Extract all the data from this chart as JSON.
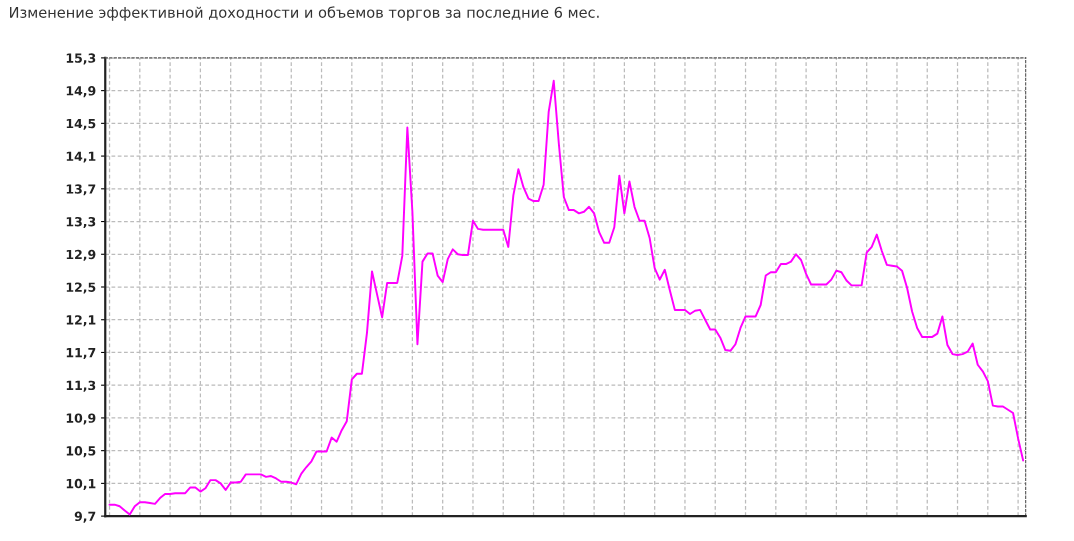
{
  "chart_data": {
    "type": "line",
    "title": "Изменение эффективной доходности и объемов торгов за последние 6 мес.",
    "categories": [
      null,
      null,
      null,
      null,
      null,
      null,
      null,
      null,
      null,
      null,
      null,
      null,
      null,
      null,
      null,
      null,
      null,
      null,
      null,
      null,
      null,
      null,
      null,
      null,
      null,
      null,
      null,
      null,
      null,
      null,
      null,
      null,
      null,
      null,
      null,
      null,
      null,
      null,
      null,
      null,
      null,
      null,
      null,
      null,
      null,
      null,
      null,
      null,
      null,
      null,
      null,
      null,
      null,
      null,
      null,
      null,
      null,
      null,
      null,
      null,
      null,
      null,
      null,
      null,
      null,
      null,
      null,
      null,
      null,
      null,
      null,
      null,
      null,
      null,
      null,
      null,
      null,
      null,
      null,
      null,
      null,
      null,
      null,
      null,
      null,
      null,
      null,
      null,
      null,
      null,
      null,
      null,
      null,
      null,
      null,
      null,
      null,
      null,
      null,
      null,
      null,
      null,
      null,
      null,
      null,
      null,
      null,
      null,
      null,
      null,
      null,
      null,
      null,
      null,
      null,
      null,
      null,
      null,
      null,
      null,
      null,
      null,
      null,
      null,
      null,
      null,
      null,
      null,
      null,
      null,
      null,
      null,
      null,
      null,
      null,
      null,
      null,
      null,
      null,
      null,
      null,
      null,
      null,
      null,
      null,
      null,
      null,
      null,
      null,
      null,
      null,
      null,
      null,
      null,
      null,
      null,
      null,
      null,
      null,
      null,
      null,
      null,
      null,
      null,
      null,
      null,
      null,
      null,
      null,
      null,
      null,
      null,
      null,
      null,
      null,
      null,
      null,
      null,
      null,
      null,
      null,
      null
    ],
    "series": [
      {
        "color": "#ff00ff",
        "values": [
          9.84,
          9.84,
          9.82,
          9.77,
          9.72,
          9.82,
          9.87,
          9.87,
          9.86,
          9.85,
          9.92,
          9.97,
          9.97,
          9.98,
          9.98,
          9.98,
          10.05,
          10.05,
          10.0,
          10.04,
          10.14,
          10.14,
          10.1,
          10.02,
          10.11,
          10.11,
          10.12,
          10.21,
          10.21,
          10.21,
          10.21,
          10.18,
          10.19,
          10.16,
          10.12,
          10.12,
          10.11,
          10.09,
          10.22,
          10.3,
          10.37,
          10.49,
          10.49,
          10.49,
          10.66,
          10.61,
          10.75,
          10.86,
          11.37,
          11.44,
          11.44,
          11.94,
          12.69,
          12.41,
          12.13,
          12.55,
          12.55,
          12.55,
          12.88,
          14.45,
          13.42,
          11.8,
          12.81,
          12.91,
          12.91,
          12.64,
          12.56,
          12.84,
          12.96,
          12.9,
          12.89,
          12.89,
          13.31,
          13.21,
          13.2,
          13.2,
          13.2,
          13.2,
          13.2,
          12.99,
          13.62,
          13.94,
          13.72,
          13.58,
          13.55,
          13.55,
          13.75,
          14.64,
          15.02,
          14.26,
          13.6,
          13.44,
          13.44,
          13.4,
          13.42,
          13.48,
          13.4,
          13.17,
          13.04,
          13.04,
          13.23,
          13.86,
          13.4,
          13.79,
          13.48,
          13.31,
          13.31,
          13.1,
          12.73,
          12.59,
          12.71,
          12.46,
          12.22,
          12.22,
          12.22,
          12.17,
          12.21,
          12.22,
          12.1,
          11.98,
          11.98,
          11.88,
          11.73,
          11.72,
          11.8,
          12.0,
          12.14,
          12.14,
          12.14,
          12.28,
          12.64,
          12.68,
          12.68,
          12.78,
          12.78,
          12.81,
          12.9,
          12.83,
          12.66,
          12.53,
          12.53,
          12.53,
          12.53,
          12.59,
          12.7,
          12.68,
          12.58,
          12.52,
          12.52,
          12.52,
          12.92,
          12.99,
          13.14,
          12.94,
          12.77,
          12.76,
          12.75,
          12.7,
          12.49,
          12.2,
          12.0,
          11.89,
          11.89,
          11.89,
          11.93,
          12.14,
          11.79,
          11.68,
          11.67,
          11.68,
          11.71,
          11.81,
          11.55,
          11.47,
          11.35,
          11.05,
          11.04,
          11.04,
          11.0,
          10.96,
          10.65,
          10.38
        ]
      }
    ],
    "ylim": [
      9.7,
      15.3
    ],
    "yticks": [
      {
        "value": 9.7,
        "label": "9,7"
      },
      {
        "value": 10.1,
        "label": "10,1"
      },
      {
        "value": 10.5,
        "label": "10,5"
      },
      {
        "value": 10.9,
        "label": "10,9"
      },
      {
        "value": 11.3,
        "label": "11,3"
      },
      {
        "value": 11.7,
        "label": "11,7"
      },
      {
        "value": 12.1,
        "label": "12,1"
      },
      {
        "value": 12.5,
        "label": "12,5"
      },
      {
        "value": 12.9,
        "label": "12,9"
      },
      {
        "value": 13.3,
        "label": "13,3"
      },
      {
        "value": 13.7,
        "label": "13,7"
      },
      {
        "value": 14.1,
        "label": "14,1"
      },
      {
        "value": 14.5,
        "label": "14,5"
      },
      {
        "value": 14.9,
        "label": "14,9"
      },
      {
        "value": 15.3,
        "label": "15,3"
      }
    ],
    "grid": true,
    "tick_labels": "y"
  }
}
